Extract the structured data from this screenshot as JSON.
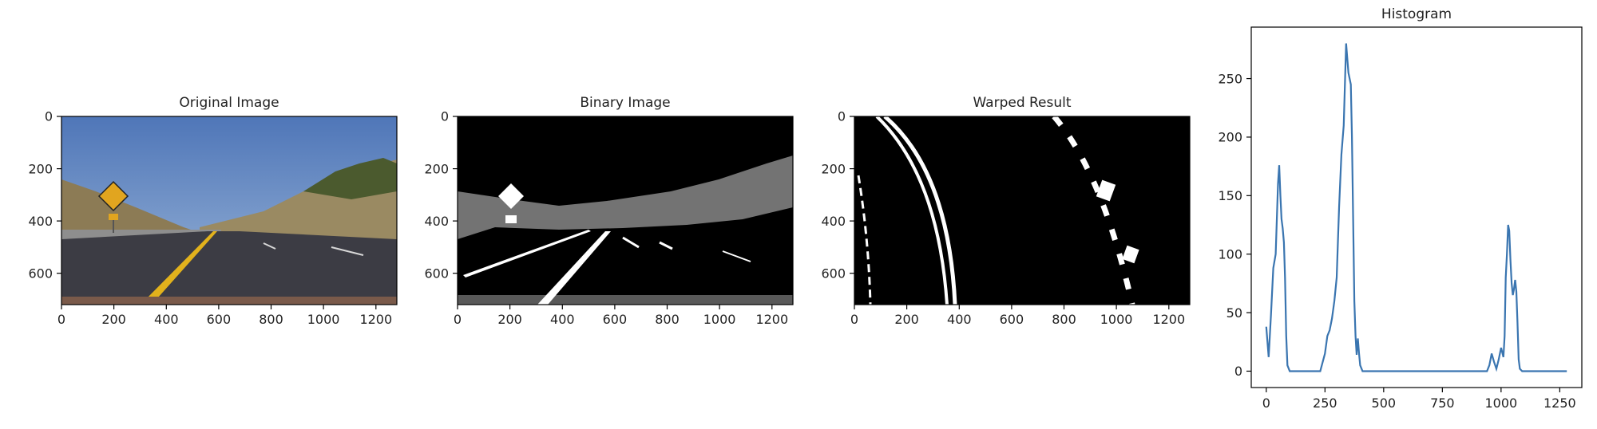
{
  "chart_data": [
    {
      "type": "image",
      "title": "Original Image",
      "x_ticks": [
        0,
        200,
        400,
        600,
        800,
        1000,
        1200
      ],
      "y_ticks": [
        0,
        200,
        400,
        600
      ],
      "xlim": [
        0,
        1280
      ],
      "ylim": [
        720,
        0
      ],
      "content": "road scene photo",
      "colors": {
        "sky": "#6f93c4",
        "road": "#3c3c44",
        "lane_yellow": "#e2b21c",
        "hills": "#9a8a62"
      }
    },
    {
      "type": "image",
      "title": "Binary Image",
      "x_ticks": [
        0,
        200,
        400,
        600,
        800,
        1000,
        1200
      ],
      "y_ticks": [
        0,
        200,
        400,
        600
      ],
      "xlim": [
        0,
        1280
      ],
      "ylim": [
        720,
        0
      ],
      "content": "binary thresholded image",
      "colors": {
        "background": "#000000",
        "foreground": "#ffffff"
      }
    },
    {
      "type": "image",
      "title": "Warped Result",
      "x_ticks": [
        0,
        200,
        400,
        600,
        800,
        1000,
        1200
      ],
      "y_ticks": [
        0,
        200,
        400,
        600
      ],
      "xlim": [
        0,
        1280
      ],
      "ylim": [
        720,
        0
      ],
      "content": "bird's-eye warped binary",
      "colors": {
        "background": "#000000",
        "foreground": "#ffffff"
      }
    },
    {
      "type": "line",
      "title": "Histogram",
      "x_ticks": [
        0,
        250,
        500,
        750,
        1000,
        1250
      ],
      "y_ticks": [
        0,
        50,
        100,
        150,
        200,
        250
      ],
      "xlim": [
        -64,
        1344
      ],
      "ylim": [
        -14,
        294
      ],
      "series": [
        {
          "color": "#3a75b0",
          "x": [
            0,
            10,
            20,
            30,
            40,
            50,
            55,
            60,
            65,
            70,
            75,
            80,
            85,
            90,
            100,
            120,
            200,
            230,
            250,
            260,
            270,
            280,
            290,
            300,
            310,
            320,
            330,
            340,
            350,
            360,
            365,
            370,
            375,
            380,
            385,
            390,
            395,
            400,
            410,
            450,
            600,
            700,
            900,
            940,
            950,
            960,
            970,
            980,
            990,
            1000,
            1010,
            1015,
            1020,
            1025,
            1030,
            1035,
            1040,
            1045,
            1050,
            1055,
            1060,
            1065,
            1070,
            1075,
            1080,
            1090,
            1100,
            1120,
            1280
          ],
          "y": [
            38,
            12,
            48,
            88,
            100,
            160,
            176,
            150,
            130,
            122,
            110,
            80,
            30,
            5,
            0,
            0,
            0,
            0,
            15,
            30,
            35,
            45,
            60,
            80,
            140,
            185,
            210,
            280,
            255,
            245,
            200,
            130,
            60,
            30,
            14,
            28,
            15,
            5,
            0,
            0,
            0,
            0,
            0,
            0,
            5,
            15,
            8,
            2,
            10,
            20,
            12,
            30,
            80,
            100,
            125,
            120,
            95,
            75,
            65,
            70,
            78,
            68,
            42,
            10,
            2,
            0,
            0,
            0,
            0
          ]
        }
      ]
    }
  ]
}
